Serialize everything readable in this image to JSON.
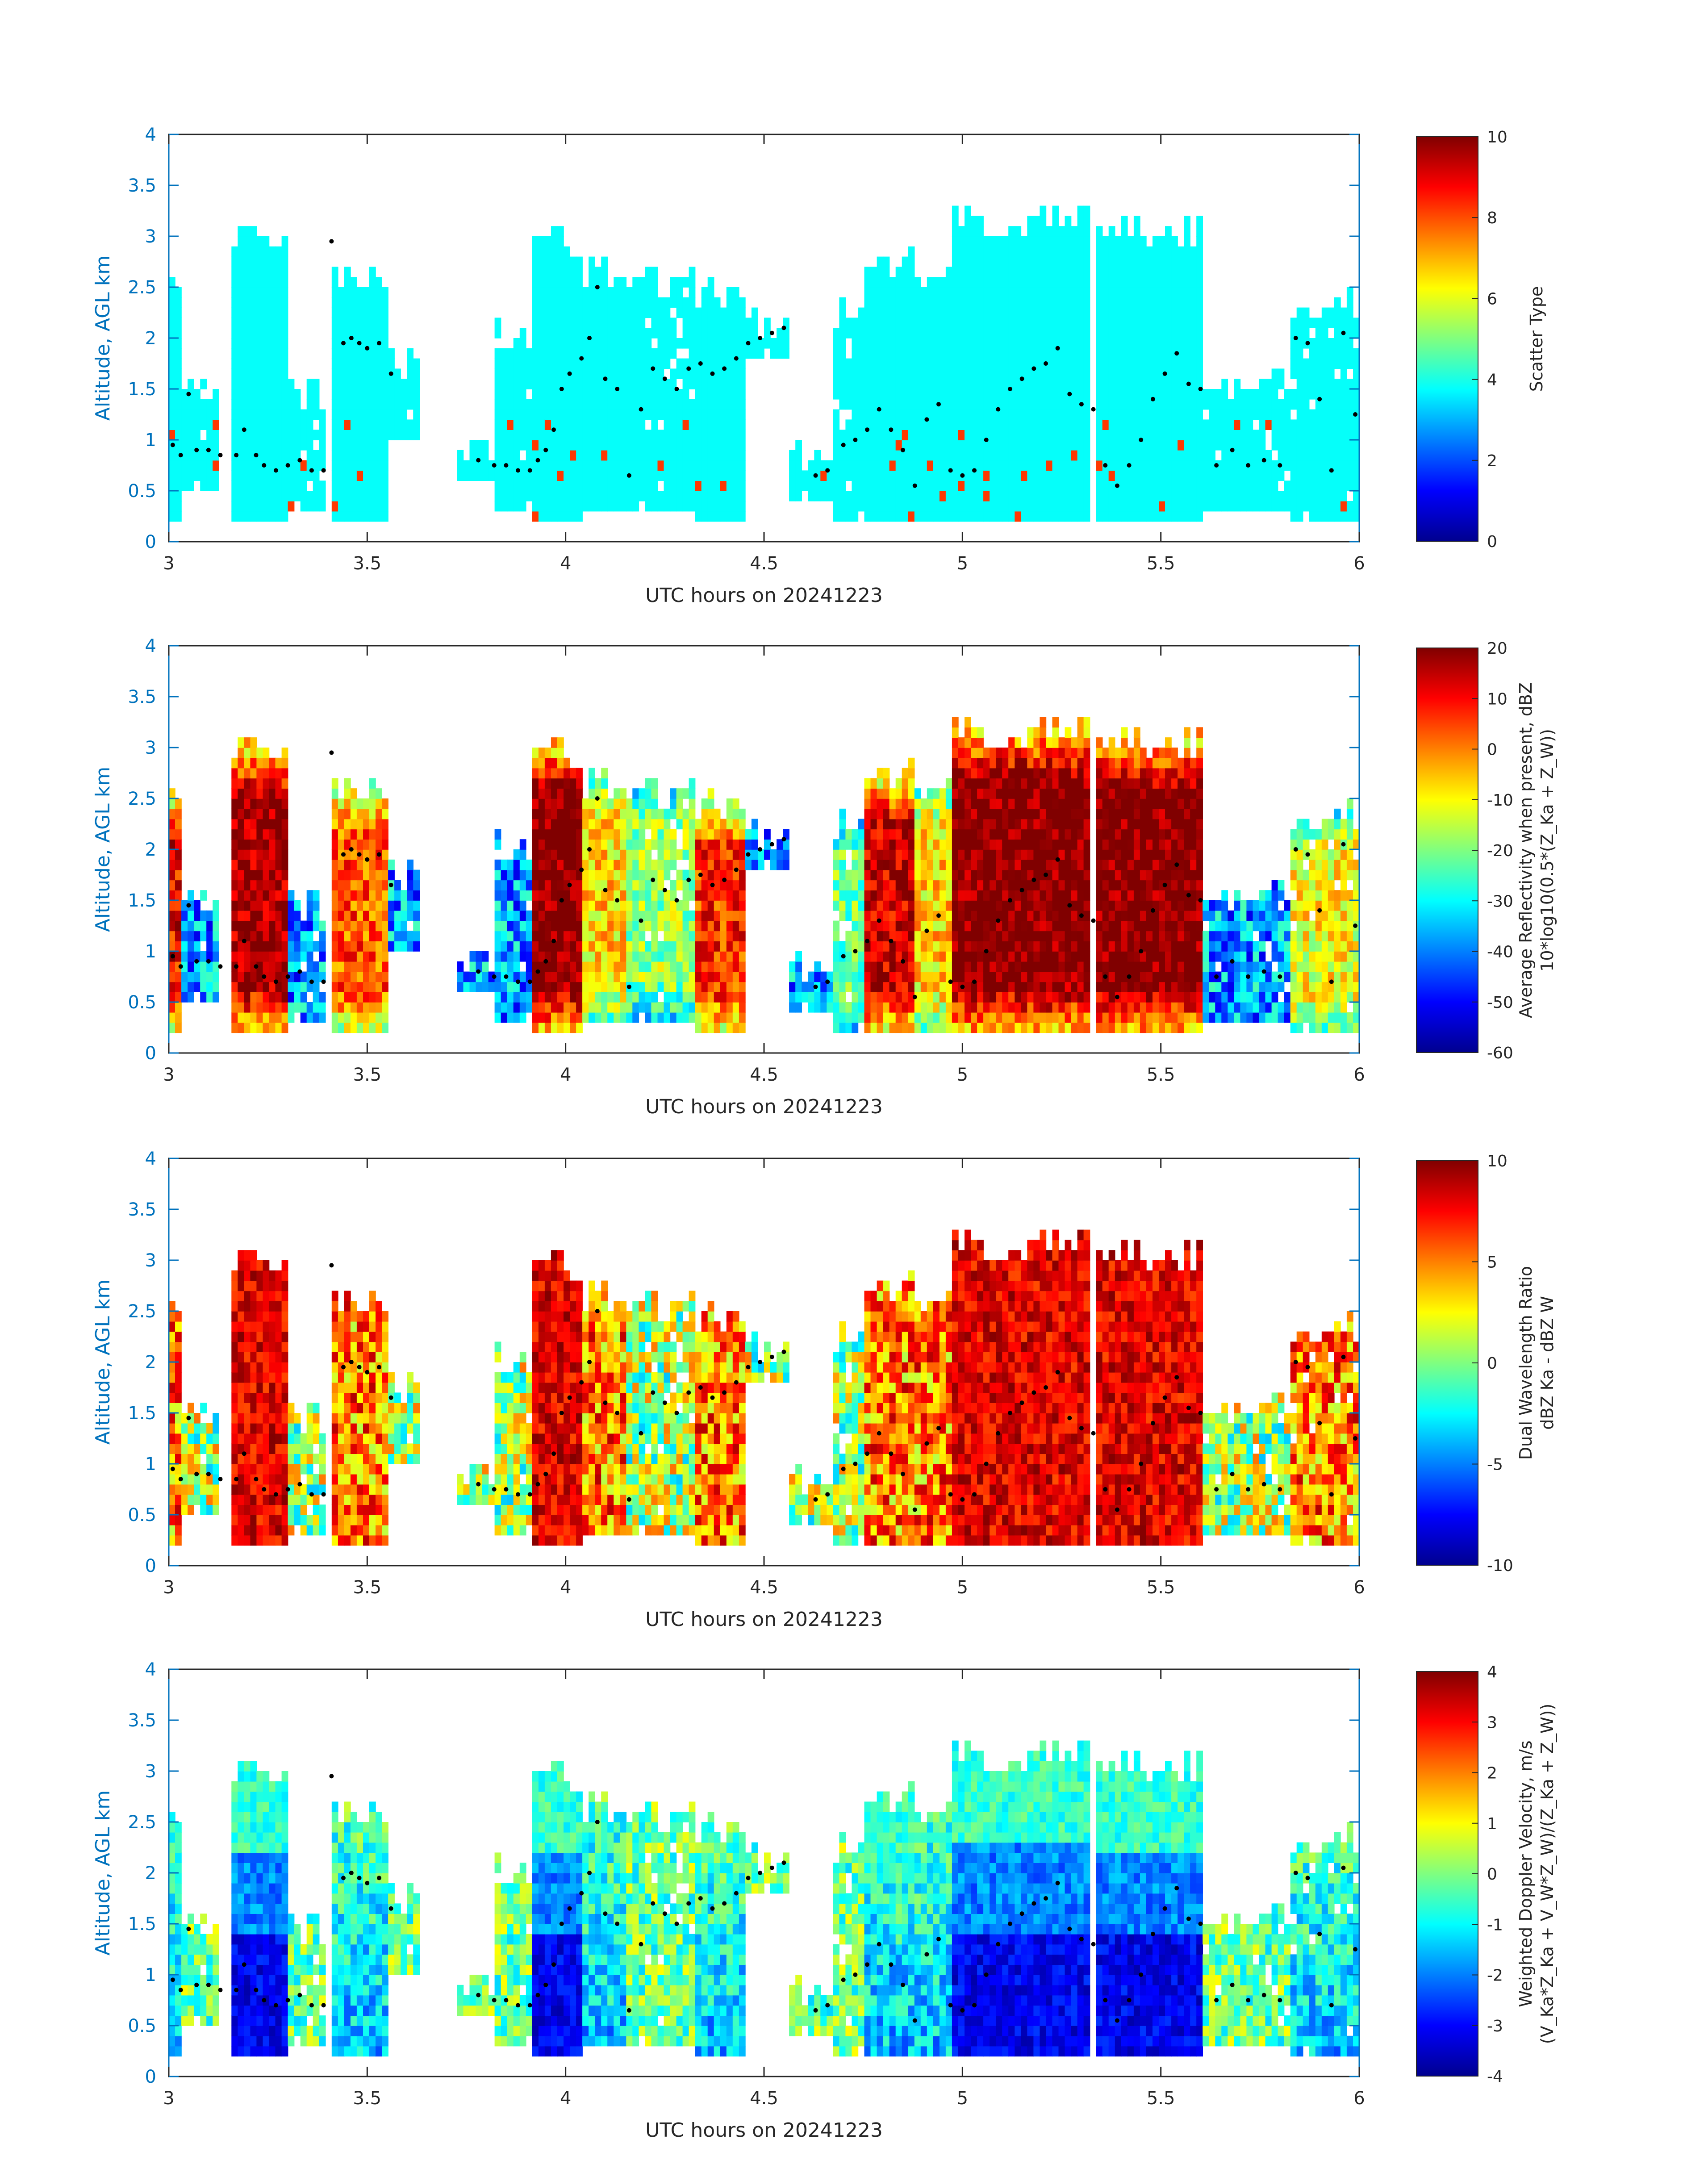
{
  "chart_data": [
    {
      "type": "heatmap",
      "name": "scatter-type",
      "xlabel": "UTC hours on 20241223",
      "ylabel": "Altitude, AGL km",
      "xlim": [
        3,
        6
      ],
      "ylim": [
        0,
        4
      ],
      "xticks": [
        "3",
        "3.5",
        "4",
        "4.5",
        "5",
        "5.5",
        "6"
      ],
      "yticks": [
        "0",
        "0.5",
        "1",
        "1.5",
        "2",
        "2.5",
        "3",
        "3.5",
        "4"
      ],
      "colorbar": {
        "label_lines": [
          "Scatter Type"
        ],
        "clim": [
          0,
          10
        ],
        "ticks": [
          "0",
          "2",
          "4",
          "6",
          "8",
          "10"
        ]
      }
    },
    {
      "type": "heatmap",
      "name": "reflectivity",
      "xlabel": "UTC hours on 20241223",
      "ylabel": "Altitude, AGL km",
      "xlim": [
        3,
        6
      ],
      "ylim": [
        0,
        4
      ],
      "xticks": [
        "3",
        "3.5",
        "4",
        "4.5",
        "5",
        "5.5",
        "6"
      ],
      "yticks": [
        "0",
        "0.5",
        "1",
        "1.5",
        "2",
        "2.5",
        "3",
        "3.5",
        "4"
      ],
      "colorbar": {
        "label_lines": [
          "Average Reflectivity when present, dBZ",
          "10*log10(0.5*(Z_Ka + Z_W))"
        ],
        "clim": [
          -60,
          20
        ],
        "ticks": [
          "-60",
          "-50",
          "-40",
          "-30",
          "-20",
          "-10",
          "0",
          "10",
          "20"
        ]
      }
    },
    {
      "type": "heatmap",
      "name": "dual-wavelength-ratio",
      "xlabel": "UTC hours on 20241223",
      "ylabel": "Altitude, AGL km",
      "xlim": [
        3,
        6
      ],
      "ylim": [
        0,
        4
      ],
      "xticks": [
        "3",
        "3.5",
        "4",
        "4.5",
        "5",
        "5.5",
        "6"
      ],
      "yticks": [
        "0",
        "0.5",
        "1",
        "1.5",
        "2",
        "2.5",
        "3",
        "3.5",
        "4"
      ],
      "colorbar": {
        "label_lines": [
          "Dual Wavelength Ratio",
          "dBZ Ka - dBZ W"
        ],
        "clim": [
          -10,
          10
        ],
        "ticks": [
          "-10",
          "-5",
          "0",
          "5",
          "10"
        ]
      }
    },
    {
      "type": "heatmap",
      "name": "doppler-velocity",
      "xlabel": "UTC hours on 20241223",
      "ylabel": "Altitude, AGL km",
      "xlim": [
        3,
        6
      ],
      "ylim": [
        0,
        4
      ],
      "xticks": [
        "3",
        "3.5",
        "4",
        "4.5",
        "5",
        "5.5",
        "6"
      ],
      "yticks": [
        "0",
        "0.5",
        "1",
        "1.5",
        "2",
        "2.5",
        "3",
        "3.5",
        "4"
      ],
      "colorbar": {
        "label_lines": [
          "Weighted Doppler Velocity, m/s",
          "(V_Ka*Z_Ka + V_W*Z_W)/(Z_Ka + Z_W))"
        ],
        "clim": [
          -4,
          4
        ],
        "ticks": [
          "-4",
          "-3",
          "-2",
          "-1",
          "0",
          "1",
          "2",
          "3",
          "4"
        ]
      }
    }
  ],
  "cloud_segments": [
    {
      "t0": 3.0,
      "t1": 3.03,
      "top": 2.5,
      "base": 0.2,
      "core": 0.85
    },
    {
      "t0": 3.03,
      "t1": 3.12,
      "top": 1.4,
      "base": 0.55,
      "core": 0.2
    },
    {
      "t0": 3.16,
      "t1": 3.3,
      "top": 3.0,
      "base": 0.2,
      "core": 0.95
    },
    {
      "t0": 3.3,
      "t1": 3.4,
      "top": 1.5,
      "base": 0.35,
      "core": 0.3
    },
    {
      "t0": 3.41,
      "t1": 3.56,
      "top": 2.6,
      "base": 0.2,
      "core": 0.75
    },
    {
      "t0": 3.56,
      "t1": 3.63,
      "top": 1.8,
      "base": 1.0,
      "core": 0.2
    },
    {
      "t0": 3.73,
      "t1": 3.82,
      "top": 0.9,
      "base": 0.6,
      "core": 0.1
    },
    {
      "t0": 3.82,
      "t1": 3.92,
      "top": 2.0,
      "base": 0.3,
      "core": 0.35
    },
    {
      "t0": 3.92,
      "t1": 4.05,
      "top": 3.0,
      "base": 0.2,
      "core": 1.0
    },
    {
      "t0": 4.05,
      "t1": 4.16,
      "top": 2.7,
      "base": 0.3,
      "core": 0.6
    },
    {
      "t0": 4.16,
      "t1": 4.33,
      "top": 2.6,
      "base": 0.35,
      "core": 0.45
    },
    {
      "t0": 4.33,
      "t1": 4.46,
      "top": 2.4,
      "base": 0.2,
      "core": 0.8
    },
    {
      "t0": 4.46,
      "t1": 4.57,
      "top": 2.1,
      "base": 1.8,
      "core": 0.2
    },
    {
      "t0": 4.56,
      "t1": 4.67,
      "top": 0.9,
      "base": 0.4,
      "core": 0.1
    },
    {
      "t0": 4.67,
      "t1": 4.76,
      "top": 2.3,
      "base": 0.2,
      "core": 0.4
    },
    {
      "t0": 4.76,
      "t1": 4.88,
      "top": 2.7,
      "base": 0.2,
      "core": 0.9
    },
    {
      "t0": 4.88,
      "t1": 4.97,
      "top": 2.6,
      "base": 0.2,
      "core": 0.6
    },
    {
      "t0": 4.97,
      "t1": 5.32,
      "top": 3.15,
      "base": 0.2,
      "core": 1.0
    },
    {
      "t0": 5.34,
      "t1": 5.6,
      "top": 3.05,
      "base": 0.2,
      "core": 1.0
    },
    {
      "t0": 5.6,
      "t1": 5.83,
      "top": 1.6,
      "base": 0.35,
      "core": 0.3
    },
    {
      "t0": 5.83,
      "t1": 6.0,
      "top": 2.35,
      "base": 0.2,
      "core": 0.55
    }
  ],
  "black_dots": [
    [
      3.01,
      0.95
    ],
    [
      3.03,
      0.85
    ],
    [
      3.05,
      1.45
    ],
    [
      3.07,
      0.9
    ],
    [
      3.1,
      0.9
    ],
    [
      3.13,
      0.85
    ],
    [
      3.17,
      0.85
    ],
    [
      3.19,
      1.1
    ],
    [
      3.22,
      0.85
    ],
    [
      3.24,
      0.75
    ],
    [
      3.27,
      0.7
    ],
    [
      3.3,
      0.75
    ],
    [
      3.33,
      0.8
    ],
    [
      3.36,
      0.7
    ],
    [
      3.39,
      0.7
    ],
    [
      3.41,
      2.95
    ],
    [
      3.44,
      1.95
    ],
    [
      3.46,
      2.0
    ],
    [
      3.48,
      1.95
    ],
    [
      3.5,
      1.9
    ],
    [
      3.53,
      1.95
    ],
    [
      3.56,
      1.65
    ],
    [
      3.78,
      0.8
    ],
    [
      3.82,
      0.75
    ],
    [
      3.85,
      0.75
    ],
    [
      3.88,
      0.7
    ],
    [
      3.91,
      0.7
    ],
    [
      3.93,
      0.8
    ],
    [
      3.95,
      0.9
    ],
    [
      3.97,
      1.1
    ],
    [
      3.99,
      1.5
    ],
    [
      4.01,
      1.65
    ],
    [
      4.04,
      1.8
    ],
    [
      4.06,
      2.0
    ],
    [
      4.08,
      2.5
    ],
    [
      4.1,
      1.6
    ],
    [
      4.13,
      1.5
    ],
    [
      4.16,
      0.65
    ],
    [
      4.19,
      1.3
    ],
    [
      4.22,
      1.7
    ],
    [
      4.25,
      1.6
    ],
    [
      4.28,
      1.5
    ],
    [
      4.31,
      1.7
    ],
    [
      4.34,
      1.75
    ],
    [
      4.37,
      1.65
    ],
    [
      4.4,
      1.7
    ],
    [
      4.43,
      1.8
    ],
    [
      4.46,
      1.95
    ],
    [
      4.49,
      2.0
    ],
    [
      4.52,
      2.05
    ],
    [
      4.55,
      2.1
    ],
    [
      4.63,
      0.65
    ],
    [
      4.66,
      0.7
    ],
    [
      4.7,
      0.95
    ],
    [
      4.73,
      1.0
    ],
    [
      4.76,
      1.1
    ],
    [
      4.79,
      1.3
    ],
    [
      4.82,
      1.1
    ],
    [
      4.85,
      0.9
    ],
    [
      4.88,
      0.55
    ],
    [
      4.91,
      1.2
    ],
    [
      4.94,
      1.35
    ],
    [
      4.97,
      0.7
    ],
    [
      5.0,
      0.65
    ],
    [
      5.03,
      0.7
    ],
    [
      5.06,
      1.0
    ],
    [
      5.09,
      1.3
    ],
    [
      5.12,
      1.5
    ],
    [
      5.15,
      1.6
    ],
    [
      5.18,
      1.7
    ],
    [
      5.21,
      1.75
    ],
    [
      5.24,
      1.9
    ],
    [
      5.27,
      1.45
    ],
    [
      5.3,
      1.35
    ],
    [
      5.33,
      1.3
    ],
    [
      5.36,
      0.75
    ],
    [
      5.39,
      0.55
    ],
    [
      5.42,
      0.75
    ],
    [
      5.45,
      1.0
    ],
    [
      5.48,
      1.4
    ],
    [
      5.51,
      1.65
    ],
    [
      5.54,
      1.85
    ],
    [
      5.57,
      1.55
    ],
    [
      5.6,
      1.5
    ],
    [
      5.64,
      0.75
    ],
    [
      5.68,
      0.9
    ],
    [
      5.72,
      0.75
    ],
    [
      5.76,
      0.8
    ],
    [
      5.8,
      0.75
    ],
    [
      5.84,
      2.0
    ],
    [
      5.87,
      1.95
    ],
    [
      5.9,
      1.4
    ],
    [
      5.93,
      0.7
    ],
    [
      5.96,
      2.05
    ],
    [
      5.99,
      1.25
    ]
  ]
}
